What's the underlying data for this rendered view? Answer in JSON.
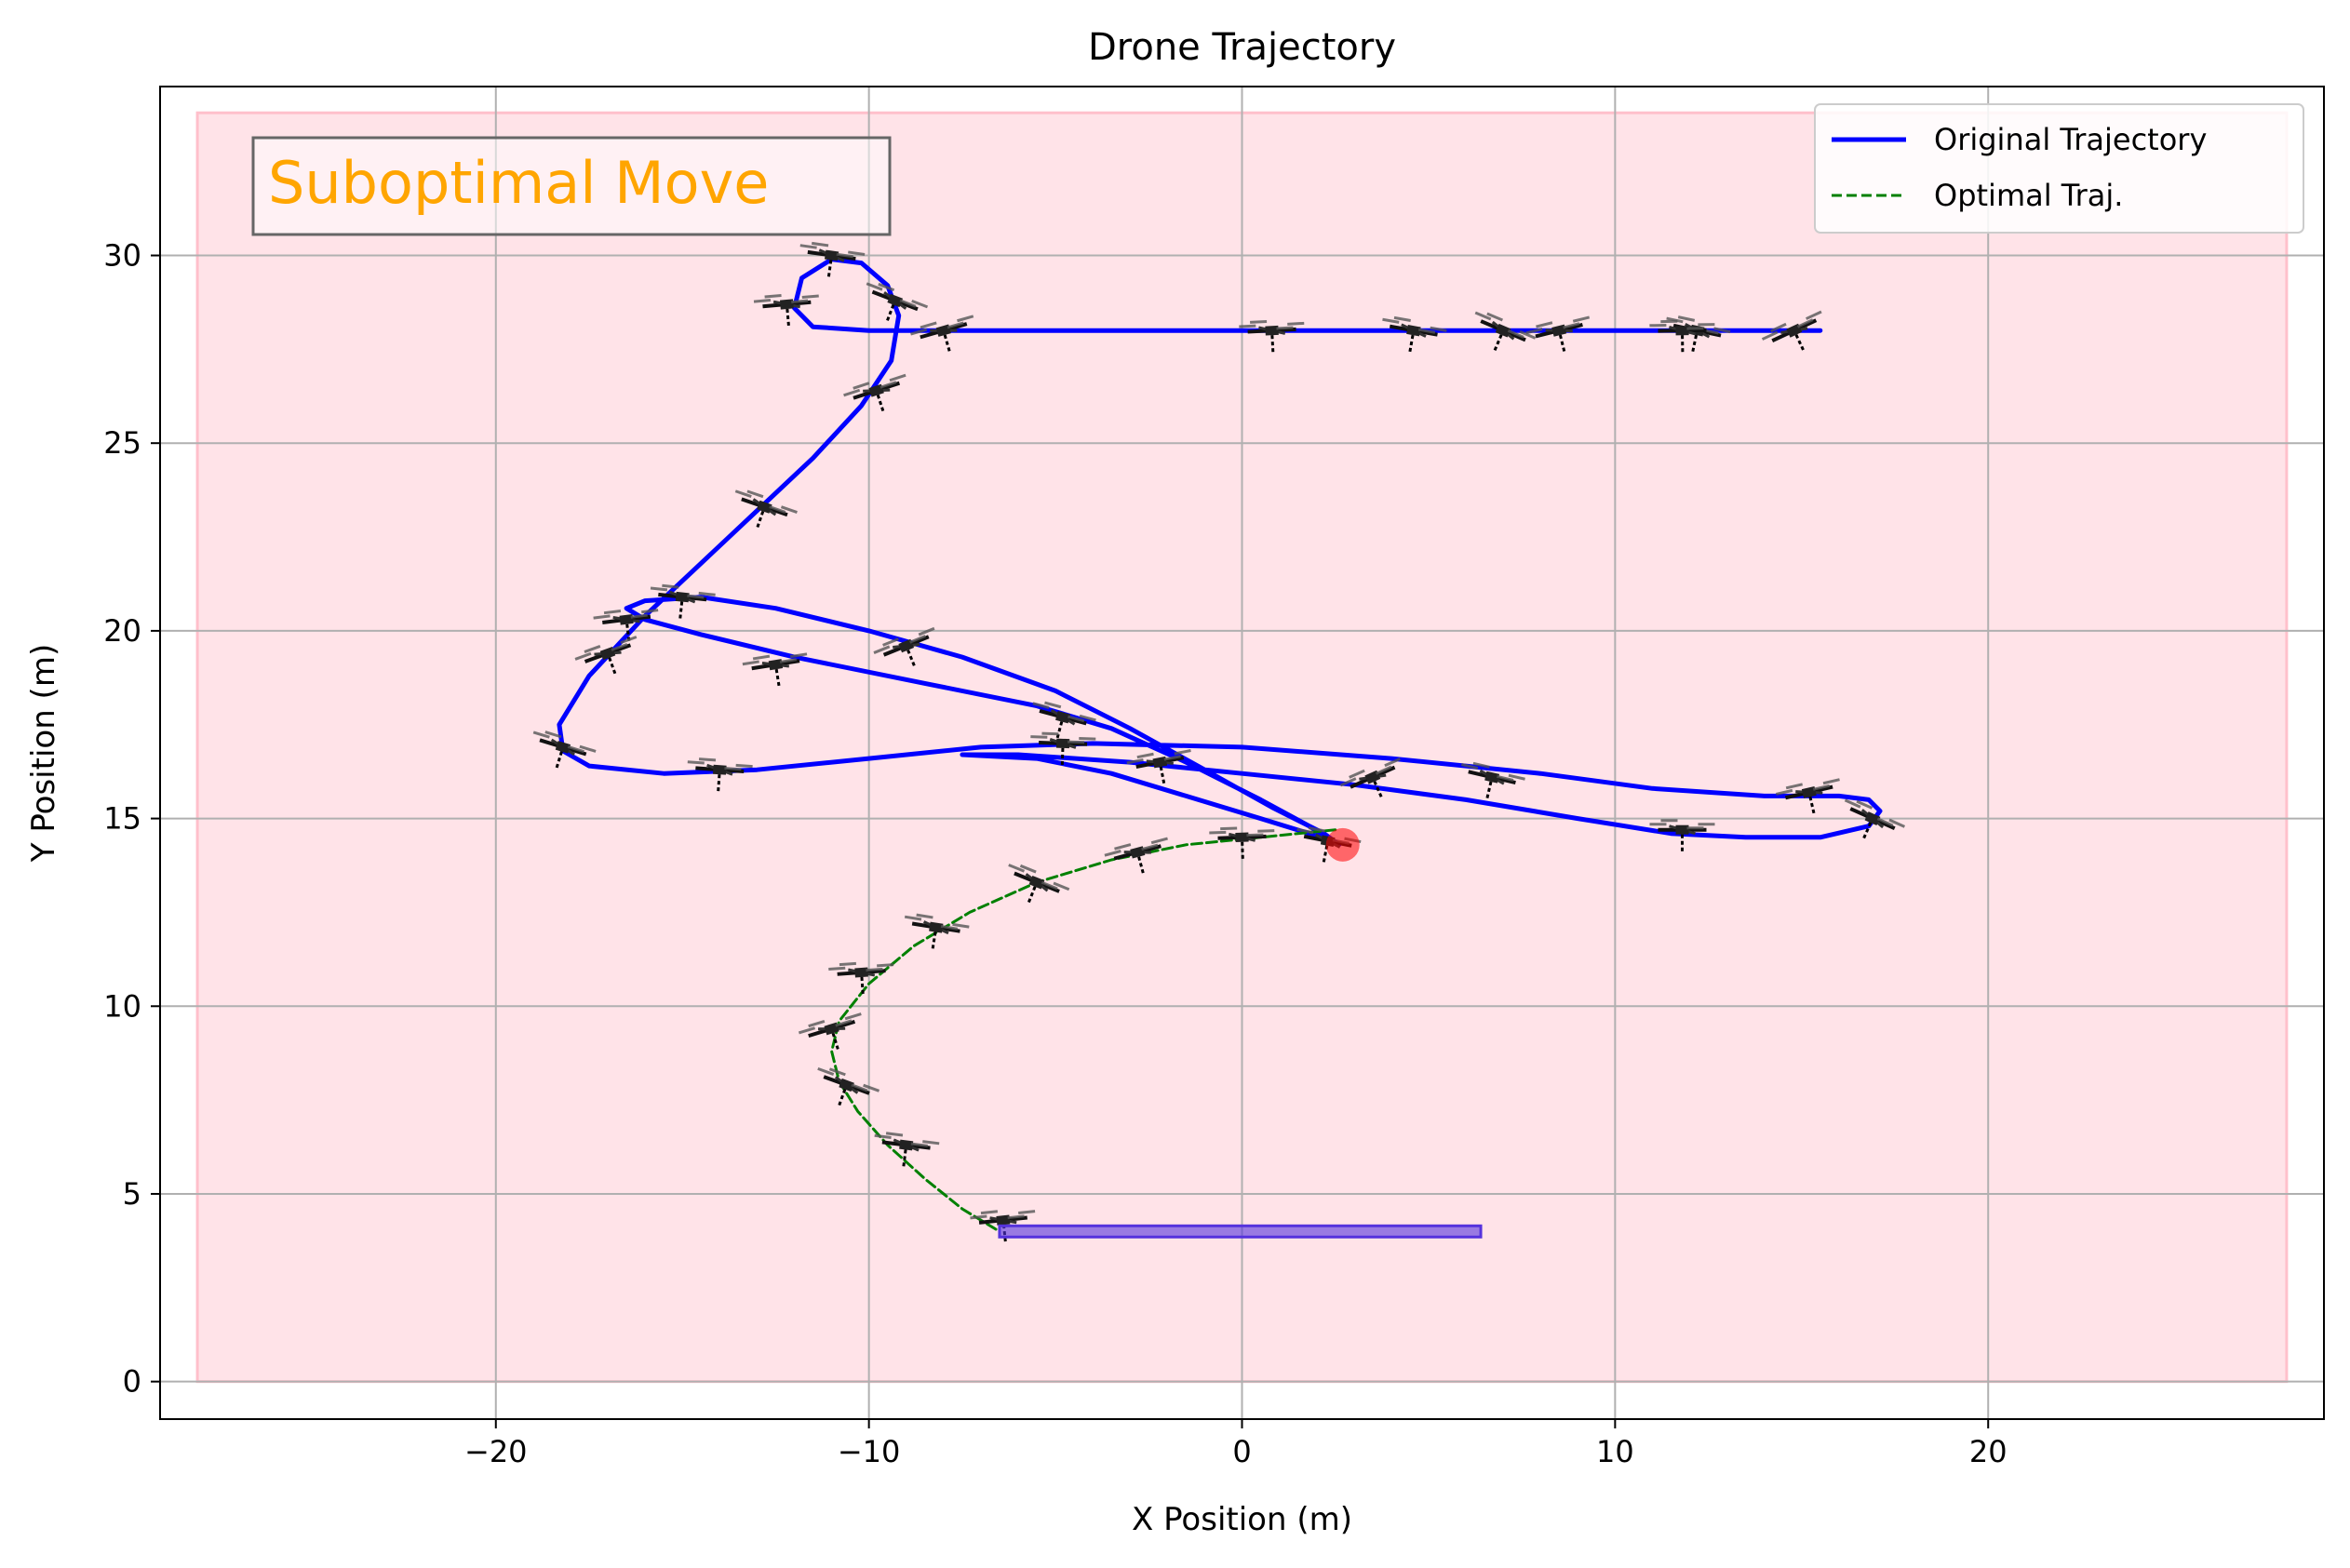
{
  "chart_data": {
    "type": "line",
    "title": "Drone Trajectory",
    "xlabel": "X Position (m)",
    "ylabel": "Y Position (m)",
    "xlim": [
      -29,
      29
    ],
    "ylim": [
      -1,
      34.5
    ],
    "xticks": [
      -20,
      -10,
      0,
      10,
      20
    ],
    "xtick_labels": [
      "−20",
      "−10",
      "0",
      "10",
      "20"
    ],
    "yticks": [
      0,
      5,
      10,
      15,
      20,
      25,
      30
    ],
    "ytick_labels": [
      "0",
      "5",
      "10",
      "15",
      "20",
      "25",
      "30"
    ],
    "grid": true,
    "legend_position": "top-right",
    "annotation": {
      "text": "Suboptimal Move",
      "color": "#FFA500",
      "position": "top-left"
    },
    "region": {
      "x": [
        -28,
        28
      ],
      "y": [
        0,
        33.8
      ],
      "color": "#FFC0CB",
      "opacity": 0.45
    },
    "platform": {
      "x": [
        -6.5,
        6.4
      ],
      "y": 4.0,
      "color": "#5533DD"
    },
    "target_marker": {
      "x": 2.7,
      "y": 14.3,
      "color": "#FF0000"
    },
    "series": [
      {
        "name": "Original Trajectory",
        "color": "#0000FF",
        "style": "solid",
        "points": [
          [
            15.5,
            28.0
          ],
          [
            14.0,
            28.0
          ],
          [
            11.0,
            28.0
          ],
          [
            8.0,
            28.0
          ],
          [
            5.0,
            28.0
          ],
          [
            2.0,
            28.0
          ],
          [
            -1.0,
            28.0
          ],
          [
            -4.0,
            28.0
          ],
          [
            -6.0,
            28.0
          ],
          [
            -8.0,
            28.0
          ],
          [
            -10.0,
            28.0
          ],
          [
            -11.5,
            28.1
          ],
          [
            -12.0,
            28.6
          ],
          [
            -11.8,
            29.4
          ],
          [
            -11.0,
            29.9
          ],
          [
            -10.2,
            29.8
          ],
          [
            -9.5,
            29.2
          ],
          [
            -9.2,
            28.4
          ],
          [
            -9.4,
            27.2
          ],
          [
            -10.2,
            26.0
          ],
          [
            -11.5,
            24.6
          ],
          [
            -13.0,
            23.2
          ],
          [
            -14.5,
            21.8
          ],
          [
            -16.0,
            20.4
          ],
          [
            -17.5,
            18.8
          ],
          [
            -18.3,
            17.5
          ],
          [
            -18.2,
            16.8
          ],
          [
            -17.5,
            16.4
          ],
          [
            -15.5,
            16.2
          ],
          [
            -13.0,
            16.3
          ],
          [
            -10.0,
            16.6
          ],
          [
            -7.0,
            16.9
          ],
          [
            -4.0,
            17.0
          ],
          [
            0.0,
            16.9
          ],
          [
            4.0,
            16.6
          ],
          [
            8.0,
            16.2
          ],
          [
            11.0,
            15.8
          ],
          [
            14.0,
            15.6
          ],
          [
            16.0,
            15.6
          ],
          [
            16.8,
            15.5
          ],
          [
            17.1,
            15.2
          ],
          [
            16.8,
            14.8
          ],
          [
            15.5,
            14.5
          ],
          [
            13.5,
            14.5
          ],
          [
            11.5,
            14.6
          ],
          [
            9.0,
            15.0
          ],
          [
            6.0,
            15.5
          ],
          [
            3.0,
            15.9
          ],
          [
            0.0,
            16.2
          ],
          [
            -3.0,
            16.5
          ],
          [
            -6.0,
            16.7
          ],
          [
            -7.5,
            16.7
          ],
          [
            -5.5,
            16.6
          ],
          [
            -3.5,
            16.2
          ],
          [
            -1.5,
            15.6
          ],
          [
            0.5,
            15.0
          ],
          [
            1.8,
            14.6
          ],
          [
            2.4,
            14.4
          ],
          [
            1.8,
            14.8
          ],
          [
            0.5,
            15.5
          ],
          [
            -1.5,
            16.5
          ],
          [
            -3.5,
            17.4
          ],
          [
            -5.5,
            18.0
          ],
          [
            -8.5,
            18.6
          ],
          [
            -12.0,
            19.3
          ],
          [
            -14.5,
            19.9
          ],
          [
            -16.0,
            20.3
          ],
          [
            -16.5,
            20.6
          ],
          [
            -16.0,
            20.8
          ],
          [
            -14.5,
            20.9
          ],
          [
            -12.5,
            20.6
          ],
          [
            -10.0,
            20.0
          ],
          [
            -7.5,
            19.3
          ],
          [
            -5.0,
            18.4
          ],
          [
            -3.0,
            17.4
          ],
          [
            -1.0,
            16.3
          ],
          [
            0.8,
            15.3
          ],
          [
            2.2,
            14.6
          ],
          [
            2.6,
            14.3
          ]
        ]
      },
      {
        "name": "Optimal Traj.",
        "color": "#008000",
        "style": "dashed",
        "points": [
          [
            2.5,
            14.7
          ],
          [
            0.5,
            14.5
          ],
          [
            -1.5,
            14.3
          ],
          [
            -3.5,
            13.9
          ],
          [
            -5.5,
            13.3
          ],
          [
            -7.3,
            12.5
          ],
          [
            -8.8,
            11.6
          ],
          [
            -10.0,
            10.6
          ],
          [
            -10.8,
            9.6
          ],
          [
            -11.0,
            8.8
          ],
          [
            -10.8,
            8.0
          ],
          [
            -10.3,
            7.2
          ],
          [
            -9.5,
            6.3
          ],
          [
            -8.5,
            5.4
          ],
          [
            -7.5,
            4.6
          ],
          [
            -6.5,
            4.0
          ]
        ]
      }
    ],
    "drone_positions": [
      [
        14.8,
        28.0
      ],
      [
        12.2,
        28.0
      ],
      [
        11.8,
        28.0
      ],
      [
        8.5,
        28.0
      ],
      [
        7.0,
        28.0
      ],
      [
        4.6,
        28.0
      ],
      [
        0.8,
        28.0
      ],
      [
        -8.0,
        28.0
      ],
      [
        -9.3,
        28.8
      ],
      [
        -11.0,
        30.0
      ],
      [
        -12.2,
        28.7
      ],
      [
        -9.8,
        26.4
      ],
      [
        -12.8,
        23.3
      ],
      [
        -15.0,
        20.9
      ],
      [
        -16.5,
        20.3
      ],
      [
        -17.0,
        19.4
      ],
      [
        -18.2,
        16.9
      ],
      [
        -14.0,
        16.3
      ],
      [
        -12.5,
        19.1
      ],
      [
        -9.0,
        19.6
      ],
      [
        -4.8,
        17.7
      ],
      [
        -4.8,
        17.0
      ],
      [
        -2.2,
        16.5
      ],
      [
        3.5,
        16.1
      ],
      [
        6.7,
        16.1
      ],
      [
        11.8,
        14.7
      ],
      [
        15.2,
        15.7
      ],
      [
        16.9,
        15.0
      ],
      [
        2.3,
        14.4
      ],
      [
        0.0,
        14.5
      ],
      [
        -2.8,
        14.1
      ],
      [
        -5.5,
        13.3
      ],
      [
        -8.2,
        12.1
      ],
      [
        -10.2,
        10.9
      ],
      [
        -11.0,
        9.4
      ],
      [
        -10.6,
        7.9
      ],
      [
        -9.0,
        6.3
      ],
      [
        -6.4,
        4.3
      ]
    ]
  }
}
